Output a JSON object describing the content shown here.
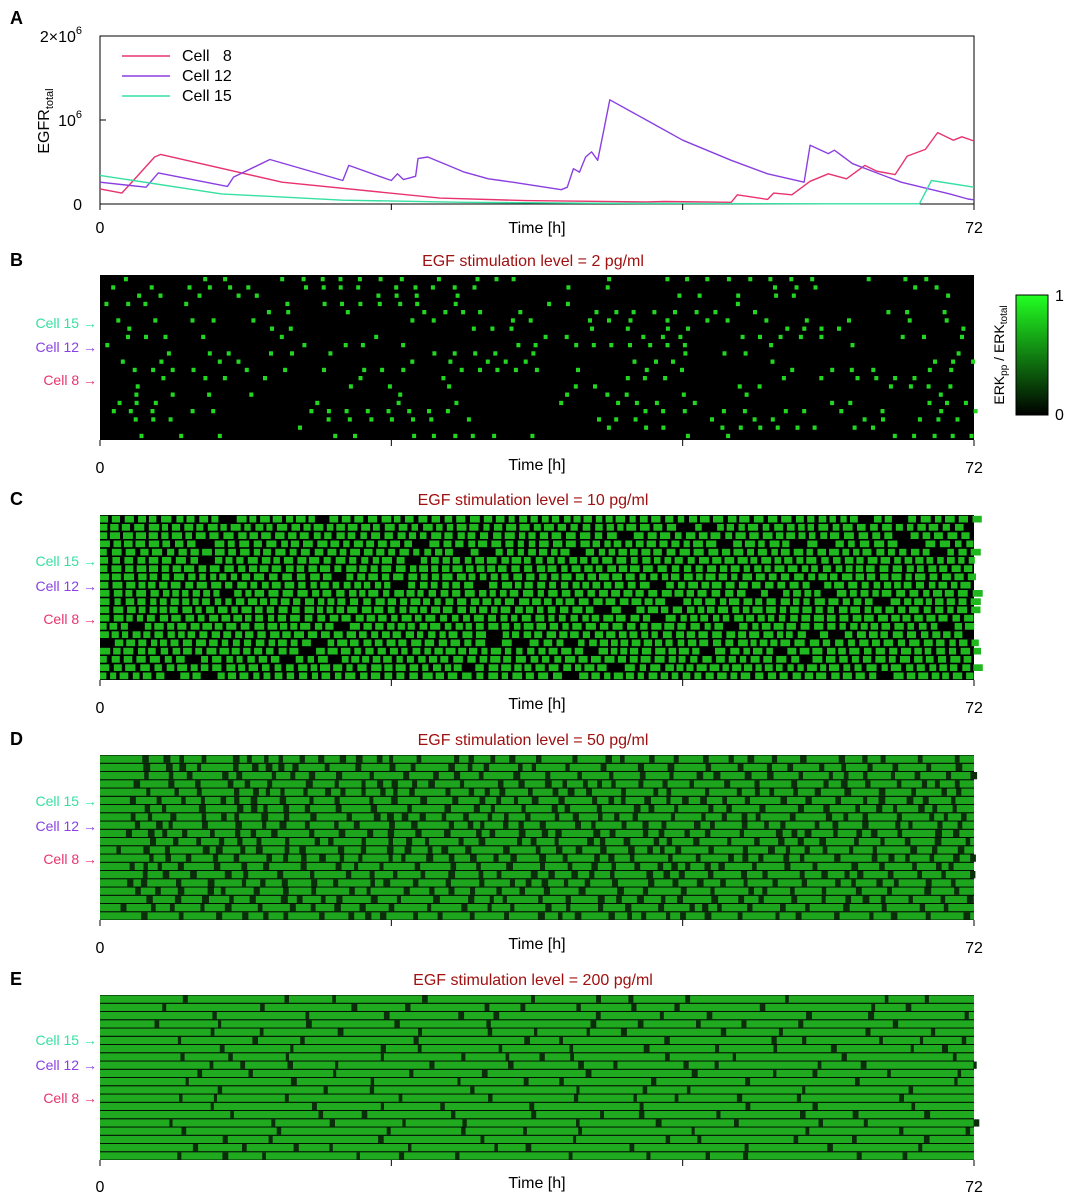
{
  "chart_data": [
    {
      "panel": "A",
      "type": "line",
      "xlabel": "Time [h]",
      "ylabel": "EGFR",
      "ylabel_sub": "total",
      "xlim": [
        0,
        72
      ],
      "ylim": [
        0,
        2000000
      ],
      "x_ticks": [
        0,
        24,
        48,
        72
      ],
      "x_tick_labels": [
        "0",
        "",
        "",
        "72"
      ],
      "y_tick_labels": [
        {
          "value": 0,
          "base": "0",
          "exp": ""
        },
        {
          "value": 1000000,
          "base": "10",
          "exp": "6"
        },
        {
          "value": 2000000,
          "base": "2×10",
          "exp": "6"
        }
      ],
      "legend_position": "top-left",
      "series": [
        {
          "name": "Cell   8",
          "color": "#e8336e",
          "x": [
            0,
            1.8,
            3,
            4.5,
            5,
            15,
            28,
            35,
            45,
            46.5,
            52,
            52.5,
            55,
            55.5,
            57,
            58.5,
            60,
            61.5,
            63,
            64,
            65.5,
            66.5,
            68,
            69,
            70.3,
            71,
            72
          ],
          "y": [
            180000,
            130000,
            320000,
            560000,
            590000,
            260000,
            70000,
            40000,
            25000,
            30000,
            20000,
            110000,
            55000,
            130000,
            110000,
            270000,
            360000,
            300000,
            460000,
            390000,
            350000,
            570000,
            650000,
            850000,
            760000,
            800000,
            750000
          ]
        },
        {
          "name": "Cell 12",
          "color": "#8a3fe0",
          "x": [
            0,
            3.8,
            4.8,
            10.5,
            14,
            24.5,
            25,
            26.5,
            27.5,
            32.5,
            35,
            36,
            39,
            40,
            41,
            42,
            47,
            48,
            50,
            52,
            55,
            58.5,
            63,
            66,
            72
          ],
          "y": [
            260000,
            200000,
            370000,
            210000,
            530000,
            290000,
            320000,
            430000,
            300000,
            180000,
            550000,
            480000,
            1300000,
            1150000,
            1250000,
            1150000,
            490000,
            440000,
            580000,
            540000,
            400000,
            180000,
            80000,
            40000,
            50000
          ],
          "path_x": [
            0,
            3.8,
            4.8,
            10.5,
            11,
            14,
            20,
            20.5,
            24,
            24.5,
            25,
            26,
            26.2,
            27,
            28,
            29,
            30,
            31,
            32,
            33,
            34,
            38,
            38.5,
            39,
            39.5,
            40,
            40.5,
            41,
            41.5,
            42,
            45,
            48,
            52,
            55,
            58,
            58.5,
            60,
            60.5,
            62,
            66,
            70,
            71.5,
            72
          ],
          "path_y": [
            260000,
            200000,
            370000,
            210000,
            320000,
            530000,
            280000,
            460000,
            280000,
            360000,
            290000,
            330000,
            540000,
            560000,
            500000,
            440000,
            380000,
            340000,
            300000,
            280000,
            260000,
            170000,
            200000,
            420000,
            380000,
            560000,
            620000,
            520000,
            880000,
            1240000,
            1000000,
            760000,
            520000,
            360000,
            260000,
            700000,
            600000,
            640000,
            480000,
            260000,
            120000,
            60000,
            50000
          ]
        },
        {
          "name": "Cell 15",
          "color": "#35e0a2",
          "x": [
            0,
            10,
            20,
            30,
            40,
            50,
            60,
            67.5,
            68.5,
            72
          ],
          "y": [
            340000,
            120000,
            45000,
            20000,
            10000,
            5000,
            2000,
            2000,
            280000,
            200000
          ]
        }
      ]
    },
    {
      "panel": "B",
      "type": "heatmap",
      "title": "EGF stimulation level = 2 pg/ml",
      "xlabel": "Time [h]",
      "xlim": [
        0,
        72
      ],
      "x_tick_labels": [
        "0",
        "",
        "",
        "72"
      ],
      "row_labels": [
        {
          "label": "Cell 15",
          "row": 5,
          "color": "#35e0a2"
        },
        {
          "label": "Cell 12",
          "row": 7,
          "color": "#8a3fe0"
        },
        {
          "label": "Cell 8",
          "row": 10,
          "color": "#e8336e"
        }
      ],
      "rows": 20,
      "activity_level": 0.06,
      "colorbar": {
        "min": "0",
        "max": "1",
        "label": "ERK",
        "label_sub1": "pp",
        "label_mid": " / ERK",
        "label_sub2": "total"
      }
    },
    {
      "panel": "C",
      "type": "heatmap",
      "title": "EGF stimulation level = 10 pg/ml",
      "xlabel": "Time [h]",
      "xlim": [
        0,
        72
      ],
      "x_tick_labels": [
        "0",
        "",
        "",
        "72"
      ],
      "row_labels": [
        {
          "label": "Cell 15",
          "row": 5,
          "color": "#35e0a2"
        },
        {
          "label": "Cell 12",
          "row": 7,
          "color": "#8a3fe0"
        },
        {
          "label": "Cell 8",
          "row": 10,
          "color": "#e8336e"
        }
      ],
      "rows": 20,
      "activity_level": 0.55
    },
    {
      "panel": "D",
      "type": "heatmap",
      "title": "EGF stimulation level = 50 pg/ml",
      "xlabel": "Time [h]",
      "xlim": [
        0,
        72
      ],
      "x_tick_labels": [
        "0",
        "",
        "",
        "72"
      ],
      "row_labels": [
        {
          "label": "Cell 15",
          "row": 5,
          "color": "#35e0a2"
        },
        {
          "label": "Cell 12",
          "row": 7,
          "color": "#8a3fe0"
        },
        {
          "label": "Cell 8",
          "row": 10,
          "color": "#e8336e"
        }
      ],
      "rows": 20,
      "activity_level": 0.85
    },
    {
      "panel": "E",
      "type": "heatmap",
      "title": "EGF stimulation level = 200 pg/ml",
      "xlabel": "Time [h]",
      "xlim": [
        0,
        72
      ],
      "x_tick_labels": [
        "0",
        "",
        "",
        "72"
      ],
      "row_labels": [
        {
          "label": "Cell 15",
          "row": 5,
          "color": "#35e0a2"
        },
        {
          "label": "Cell 12",
          "row": 7,
          "color": "#8a3fe0"
        },
        {
          "label": "Cell 8",
          "row": 10,
          "color": "#e8336e"
        }
      ],
      "rows": 20,
      "activity_level": 0.97
    }
  ],
  "colors": {
    "title": "#a01010",
    "heat_low": "#000000",
    "heat_high": "#1fd11f",
    "heat_full": "#22e822"
  }
}
